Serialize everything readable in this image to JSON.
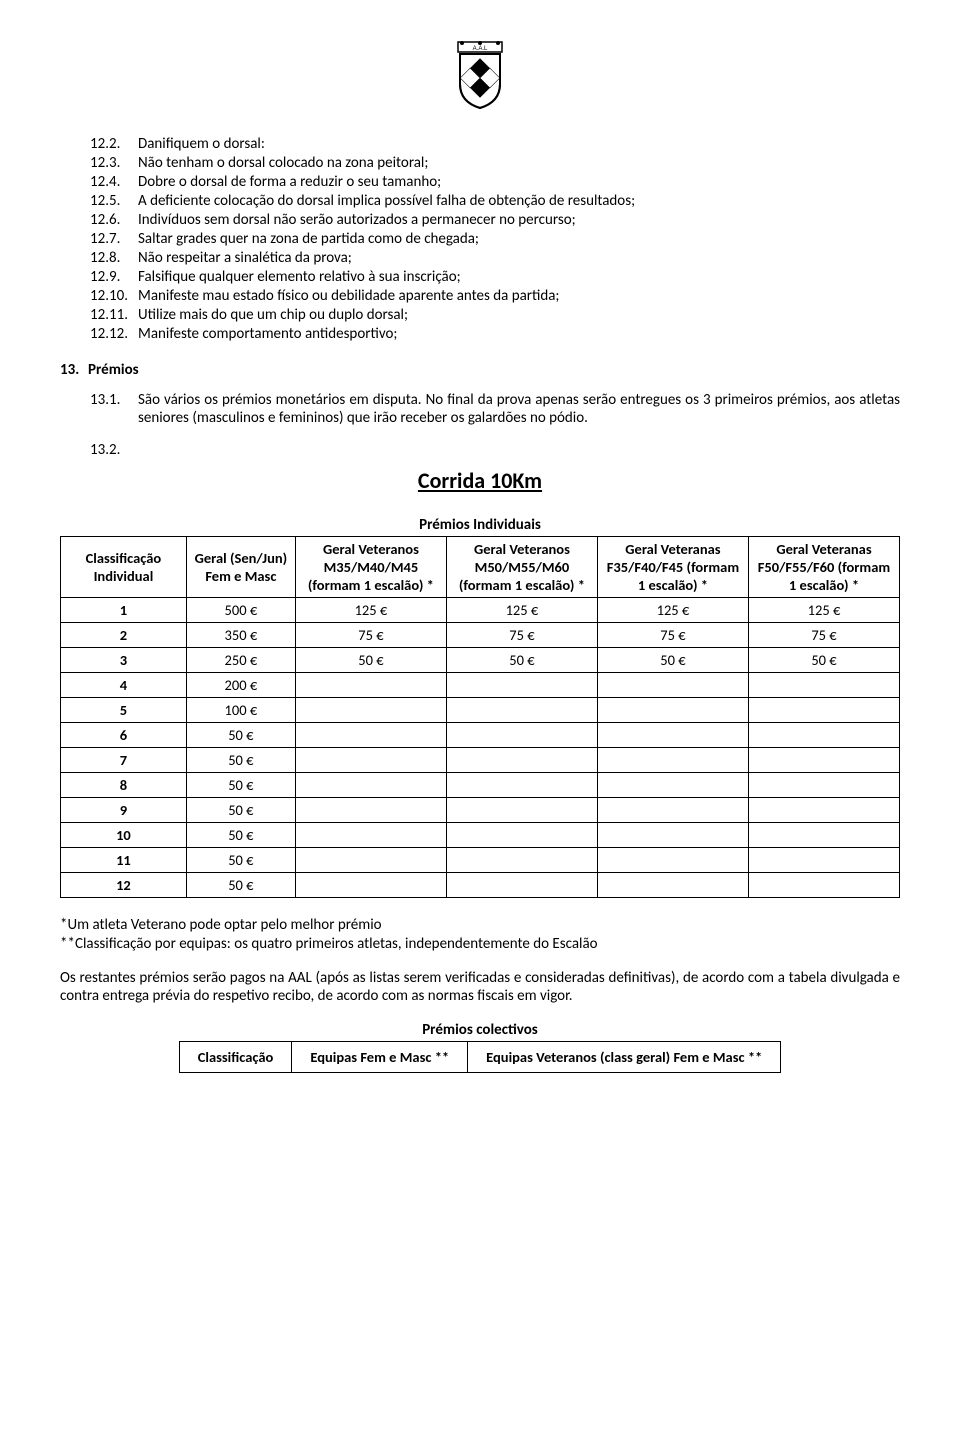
{
  "list": {
    "items": [
      {
        "n": "12.2.",
        "t": "Danifiquem o dorsal:"
      },
      {
        "n": "12.3.",
        "t": "Não tenham o dorsal colocado na zona peitoral;"
      },
      {
        "n": "12.4.",
        "t": "Dobre o dorsal de forma a reduzir o seu tamanho;"
      },
      {
        "n": "12.5.",
        "t": "A deficiente colocação do dorsal implica possível falha de obtenção de resultados;"
      },
      {
        "n": "12.6.",
        "t": "Indivíduos sem dorsal não serão autorizados a permanecer no percurso;"
      },
      {
        "n": "12.7.",
        "t": "Saltar grades quer na zona de partida como de chegada;"
      },
      {
        "n": "12.8.",
        "t": "Não respeitar a sinalética da prova;"
      },
      {
        "n": "12.9.",
        "t": "Falsifique qualquer elemento relativo à sua inscrição;"
      },
      {
        "n": "12.10.",
        "t": "Manifeste mau estado físico ou debilidade aparente antes da partida;"
      },
      {
        "n": "12.11.",
        "t": "Utilize mais do que um chip ou duplo dorsal;"
      },
      {
        "n": "12.12.",
        "t": "Manifeste comportamento antidesportivo;"
      }
    ]
  },
  "section": {
    "n": "13.",
    "label": "Prémios"
  },
  "para": {
    "n": "13.1.",
    "t": "São vários os prémios monetários em disputa. No final da prova apenas serão entregues os 3 primeiros prémios, aos atletas seniores (masculinos e femininos) que irão receber os galardões no pódio."
  },
  "solo_num": "13.2.",
  "corrida_title": "Corrida 10Km",
  "premios_ind_title": "Prémios Individuais",
  "table1": {
    "headers": [
      "Classificação Individual",
      "Geral (Sen/Jun) Fem e Masc",
      "Geral Veteranos M35/M40/M45 (formam 1 escalão) *",
      "Geral Veteranos M50/M55/M60 (formam 1 escalão) *",
      "Geral Veteranas F35/F40/F45 (formam 1 escalão) *",
      "Geral Veteranas F50/F55/F60 (formam 1 escalão) *"
    ],
    "rows": [
      [
        "1",
        "500 €",
        "125 €",
        "125 €",
        "125 €",
        "125 €"
      ],
      [
        "2",
        "350 €",
        "75 €",
        "75 €",
        "75 €",
        "75 €"
      ],
      [
        "3",
        "250 €",
        "50 €",
        "50 €",
        "50 €",
        "50 €"
      ],
      [
        "4",
        "200 €",
        "",
        "",
        "",
        ""
      ],
      [
        "5",
        "100 €",
        "",
        "",
        "",
        ""
      ],
      [
        "6",
        "50 €",
        "",
        "",
        "",
        ""
      ],
      [
        "7",
        "50 €",
        "",
        "",
        "",
        ""
      ],
      [
        "8",
        "50 €",
        "",
        "",
        "",
        ""
      ],
      [
        "9",
        "50 €",
        "",
        "",
        "",
        ""
      ],
      [
        "10",
        "50 €",
        "",
        "",
        "",
        ""
      ],
      [
        "11",
        "50 €",
        "",
        "",
        "",
        ""
      ],
      [
        "12",
        "50 €",
        "",
        "",
        "",
        ""
      ]
    ],
    "col_widths": [
      "15%",
      "13%",
      "18%",
      "18%",
      "18%",
      "18%"
    ]
  },
  "footnotes": {
    "a": "*Um atleta Veterano pode optar pelo melhor prémio",
    "b": "**Classificação por equipas: os quatro primeiros atletas, independentemente do Escalão"
  },
  "body_para": "Os restantes prémios serão pagos na AAL (após as listas serem verificadas e consideradas definitivas), de acordo com a tabela divulgada e contra entrega prévia do respetivo recibo, de acordo com as normas fiscais em vigor.",
  "colectivos_title": "Prémios colectivos",
  "table2": {
    "headers": [
      "Classificação",
      "Equipas Fem e Masc **",
      "Equipas Veteranos (class geral) Fem e Masc **"
    ]
  },
  "logo": {
    "crown_color": "#000000",
    "text": "A.A.L",
    "shield_stroke": "#000000",
    "checker_dark": "#000000",
    "checker_light": "#ffffff"
  }
}
